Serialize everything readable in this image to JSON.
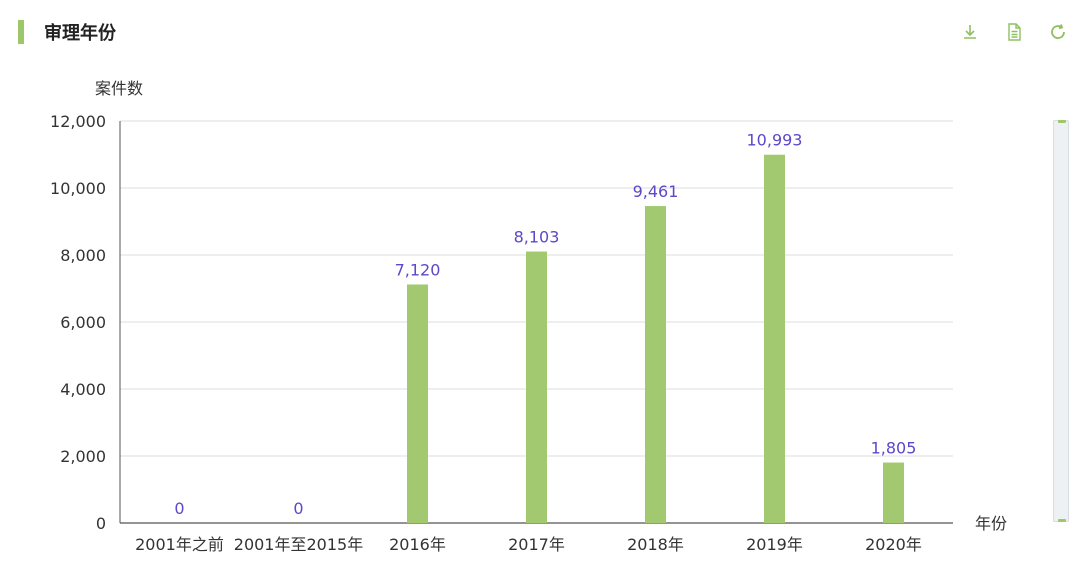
{
  "header": {
    "title": "审理年份"
  },
  "toolbar": {
    "icons": [
      "download-icon",
      "data-view-icon",
      "refresh-icon"
    ]
  },
  "colors": {
    "accent": "#9dc86a",
    "bar": "#a2c96f",
    "data_label": "#5b49c8",
    "axis_text": "#333333",
    "grid": "#dcdcdc"
  },
  "chart_data": {
    "type": "bar",
    "ylabel": "案件数",
    "xlabel": "年份",
    "categories": [
      "2001年之前",
      "2001年至2015年",
      "2016年",
      "2017年",
      "2018年",
      "2019年",
      "2020年"
    ],
    "values": [
      0,
      0,
      7120,
      8103,
      9461,
      10993,
      1805
    ],
    "value_labels": [
      "0",
      "0",
      "7,120",
      "8,103",
      "9,461",
      "10,993",
      "1,805"
    ],
    "ylim": [
      0,
      12000
    ],
    "yticks": [
      0,
      2000,
      4000,
      6000,
      8000,
      10000,
      12000
    ],
    "ytick_labels": [
      "0",
      "2,000",
      "4,000",
      "6,000",
      "8,000",
      "10,000",
      "12,000"
    ],
    "grid": true
  }
}
